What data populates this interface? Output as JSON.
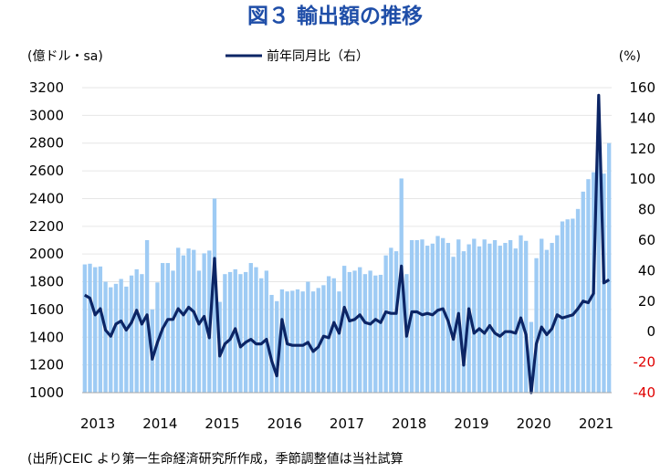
{
  "chart_data": {
    "type": "bar+line",
    "title": "図３ 輸出額の推移",
    "ylabel_left": "(億ドル・sa)",
    "ylabel_right": "(%)",
    "legend": {
      "line": "前年同月比（右）"
    },
    "source": "(出所)CEIC より第一生命経済研究所作成，季節調整値は当社試算",
    "left_axis": {
      "min": 1000,
      "max": 3200,
      "ticks": [
        "1000",
        "1200",
        "1400",
        "1600",
        "1800",
        "2000",
        "2200",
        "2400",
        "2600",
        "2800",
        "3000",
        "3200"
      ]
    },
    "right_axis": {
      "min": -40,
      "max": 160,
      "ticks": [
        "-40",
        "-20",
        "0",
        "20",
        "40",
        "60",
        "80",
        "100",
        "120",
        "140",
        "160"
      ]
    },
    "x_year_labels": [
      "2013",
      "2014",
      "2015",
      "2016",
      "2017",
      "2018",
      "2019",
      "2020",
      "2021"
    ],
    "start": "2013-01",
    "bar_values": [
      1925,
      1930,
      1905,
      1910,
      1800,
      1760,
      1785,
      1820,
      1765,
      1845,
      1890,
      1855,
      2100,
      1600,
      1795,
      1935,
      1935,
      1880,
      2045,
      1990,
      2040,
      2030,
      1880,
      2005,
      2025,
      2400,
      1655,
      1855,
      1870,
      1890,
      1855,
      1870,
      1935,
      1905,
      1825,
      1880,
      1705,
      1660,
      1745,
      1730,
      1735,
      1745,
      1730,
      1800,
      1730,
      1755,
      1775,
      1840,
      1825,
      1730,
      1915,
      1870,
      1880,
      1905,
      1855,
      1880,
      1845,
      1850,
      1990,
      2045,
      2020,
      2545,
      1855,
      2100,
      2100,
      2105,
      2060,
      2075,
      2130,
      2115,
      2080,
      1980,
      2105,
      2020,
      2070,
      2110,
      2055,
      2105,
      2075,
      2100,
      2060,
      2080,
      2100,
      2040,
      2135,
      2095,
      1510,
      1970,
      2110,
      2030,
      2080,
      2135,
      2235,
      2250,
      2255,
      2325,
      2450,
      2540,
      2590,
      2810,
      2580,
      2800
    ],
    "yoy_values": [
      24,
      22,
      11,
      15,
      1,
      -3,
      5,
      7,
      1,
      6,
      14,
      5,
      11,
      -18,
      -7,
      2,
      8,
      8,
      15,
      11,
      16,
      13,
      5,
      10,
      -4,
      48,
      -16,
      -8,
      -5,
      2,
      -10,
      -7,
      -5,
      -8,
      -8,
      -5,
      -19,
      -29,
      8,
      -8,
      -9,
      -9,
      -9,
      -7,
      -13,
      -10,
      -3,
      -4,
      6,
      -1,
      16,
      7,
      8,
      11,
      6,
      5,
      8,
      6,
      13,
      12,
      12,
      43,
      -3,
      13,
      13,
      11,
      12,
      11,
      14,
      15,
      7,
      -5,
      12,
      -22,
      15,
      -1,
      2,
      -1,
      4,
      -1,
      -3,
      0,
      0,
      -1,
      9,
      -2,
      -40,
      -8,
      3,
      -2,
      2,
      11,
      9,
      10,
      11,
      15,
      20,
      19,
      25,
      155,
      32,
      34
    ]
  }
}
